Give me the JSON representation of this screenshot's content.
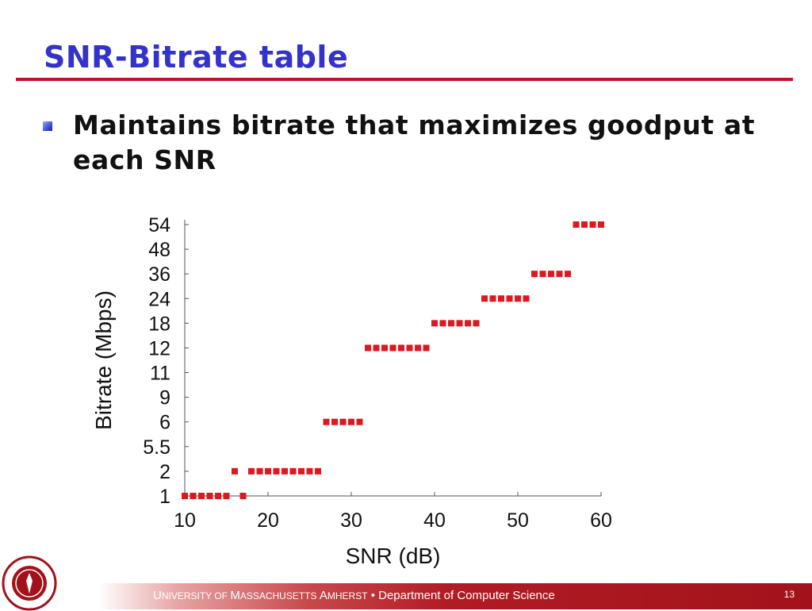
{
  "slide": {
    "title": "SNR-Bitrate table",
    "bullet": "Maintains bitrate that maximizes goodput at each SNR",
    "page_number": "13"
  },
  "footer": {
    "u": "U",
    "niversity_of": "NIVERSITY OF ",
    "m": "M",
    "assachusetts": "ASSACHUSETTS ",
    "a": "A",
    "mherst": "MHERST",
    "separator": " • ",
    "department": "Department of Computer Science"
  },
  "colors": {
    "title": "#3333cc",
    "rule": "#c8102e",
    "marker": "#e0171f",
    "footer": "#a3121a"
  },
  "chart_data": {
    "type": "scatter",
    "title": "",
    "xlabel": "SNR (dB)",
    "ylabel": "Bitrate (Mbps)",
    "categories": [
      "1",
      "2",
      "5.5",
      "6",
      "9",
      "11",
      "12",
      "18",
      "24",
      "36",
      "48",
      "54"
    ],
    "x_ticks": [
      10,
      20,
      30,
      40,
      50,
      60
    ],
    "xlim": [
      10,
      60
    ],
    "grid": false,
    "points": [
      {
        "x": 10,
        "y": "1"
      },
      {
        "x": 11,
        "y": "1"
      },
      {
        "x": 12,
        "y": "1"
      },
      {
        "x": 13,
        "y": "1"
      },
      {
        "x": 14,
        "y": "1"
      },
      {
        "x": 15,
        "y": "1"
      },
      {
        "x": 16,
        "y": "2"
      },
      {
        "x": 17,
        "y": "1"
      },
      {
        "x": 18,
        "y": "2"
      },
      {
        "x": 19,
        "y": "2"
      },
      {
        "x": 20,
        "y": "2"
      },
      {
        "x": 21,
        "y": "2"
      },
      {
        "x": 22,
        "y": "2"
      },
      {
        "x": 23,
        "y": "2"
      },
      {
        "x": 24,
        "y": "2"
      },
      {
        "x": 25,
        "y": "2"
      },
      {
        "x": 26,
        "y": "2"
      },
      {
        "x": 27,
        "y": "6"
      },
      {
        "x": 28,
        "y": "6"
      },
      {
        "x": 29,
        "y": "6"
      },
      {
        "x": 30,
        "y": "6"
      },
      {
        "x": 31,
        "y": "6"
      },
      {
        "x": 32,
        "y": "12"
      },
      {
        "x": 33,
        "y": "12"
      },
      {
        "x": 34,
        "y": "12"
      },
      {
        "x": 35,
        "y": "12"
      },
      {
        "x": 36,
        "y": "12"
      },
      {
        "x": 37,
        "y": "12"
      },
      {
        "x": 38,
        "y": "12"
      },
      {
        "x": 39,
        "y": "12"
      },
      {
        "x": 40,
        "y": "18"
      },
      {
        "x": 41,
        "y": "18"
      },
      {
        "x": 42,
        "y": "18"
      },
      {
        "x": 43,
        "y": "18"
      },
      {
        "x": 44,
        "y": "18"
      },
      {
        "x": 45,
        "y": "18"
      },
      {
        "x": 46,
        "y": "24"
      },
      {
        "x": 47,
        "y": "24"
      },
      {
        "x": 48,
        "y": "24"
      },
      {
        "x": 49,
        "y": "24"
      },
      {
        "x": 50,
        "y": "24"
      },
      {
        "x": 51,
        "y": "24"
      },
      {
        "x": 52,
        "y": "36"
      },
      {
        "x": 53,
        "y": "36"
      },
      {
        "x": 54,
        "y": "36"
      },
      {
        "x": 55,
        "y": "36"
      },
      {
        "x": 56,
        "y": "36"
      },
      {
        "x": 57,
        "y": "54"
      },
      {
        "x": 58,
        "y": "54"
      },
      {
        "x": 59,
        "y": "54"
      },
      {
        "x": 60,
        "y": "54"
      }
    ]
  }
}
